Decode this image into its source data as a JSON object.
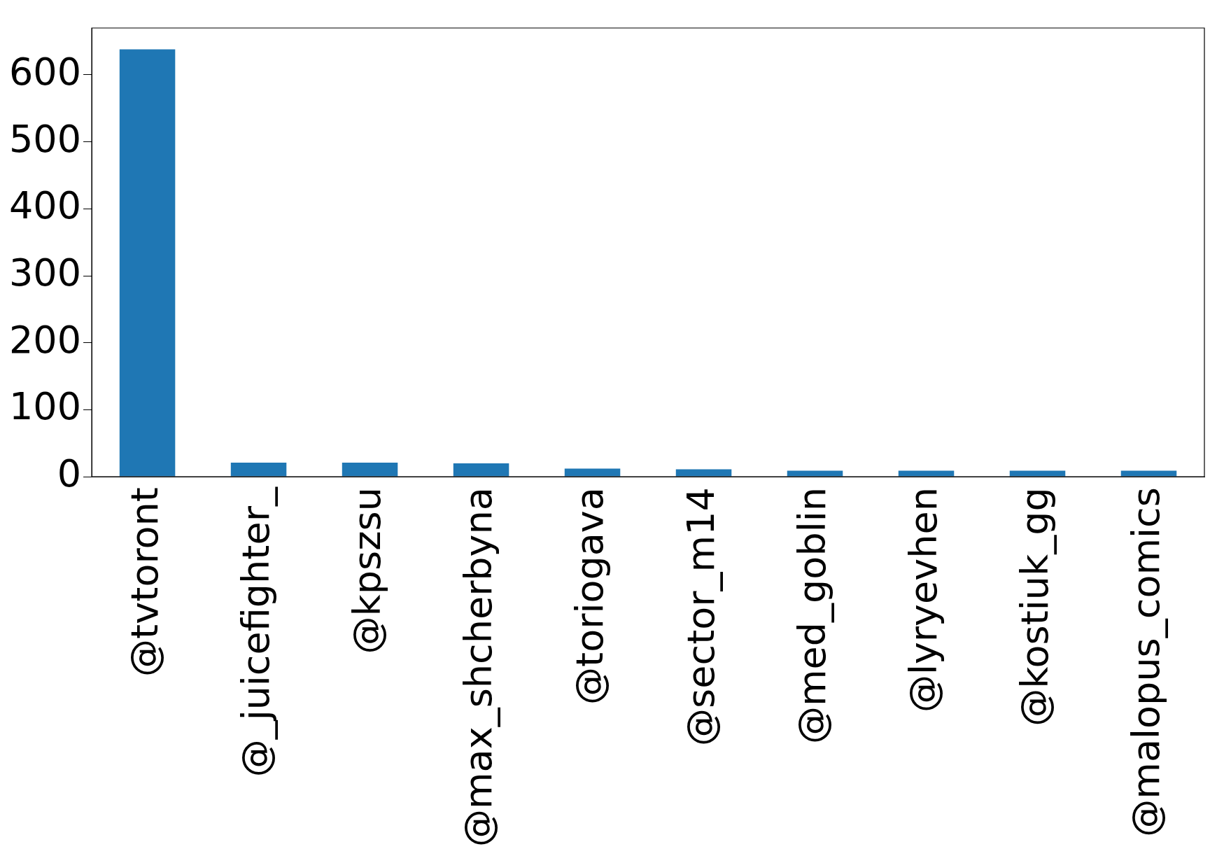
{
  "chart_data": {
    "type": "bar",
    "categories": [
      "@tvtoront",
      "@_juicefighter_",
      "@kpszsu",
      "@max_shcherbyna",
      "@toriogava",
      "@sector_m14",
      "@med_goblin",
      "@lyryevhen",
      "@kostiuk_gg",
      "@malopus_comics"
    ],
    "values": [
      638,
      21,
      21,
      20,
      12,
      11,
      9,
      9,
      9,
      9
    ],
    "color": "#1f77b4",
    "ylim": [
      0,
      670
    ],
    "yticks": [
      0,
      100,
      200,
      300,
      400,
      500,
      600
    ],
    "grid": false,
    "legend": false
  }
}
